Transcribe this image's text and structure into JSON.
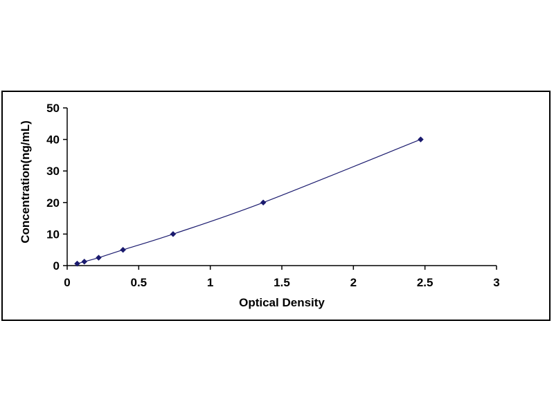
{
  "chart_data": {
    "type": "scatter",
    "title": "",
    "xlabel": "Optical Density",
    "ylabel": "Concentration(ng/mL)",
    "xlim": [
      0,
      3
    ],
    "ylim": [
      0,
      50
    ],
    "x_ticks": [
      0,
      0.5,
      1,
      1.5,
      2,
      2.5,
      3
    ],
    "x_tick_labels": [
      "0",
      "0.5",
      "1",
      "1.5",
      "2",
      "2.5",
      "3"
    ],
    "y_ticks": [
      0,
      10,
      20,
      30,
      40,
      50
    ],
    "y_tick_labels": [
      "0",
      "10",
      "20",
      "30",
      "40",
      "50"
    ],
    "grid": false,
    "legend": "none",
    "series": [
      {
        "x": [
          0.07,
          0.12,
          0.22,
          0.39,
          0.74,
          1.37,
          2.47
        ],
        "y": [
          0.625,
          1.25,
          2.5,
          5,
          10,
          20,
          40
        ],
        "marker": "diamond",
        "trendline": "smooth",
        "color": "#1a1a6e"
      }
    ],
    "line_color": "#1a1a6e",
    "axis_color": "#000000"
  }
}
